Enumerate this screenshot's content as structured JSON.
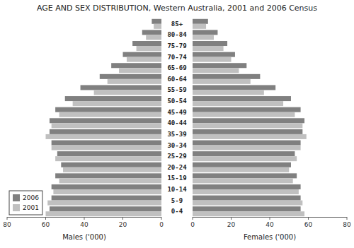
{
  "chart_data": [
    {
      "type": "bar",
      "orientation": "horizontal",
      "title": "AGE AND SEX DISTRIBUTION, Western Australia, 2001 and 2006 Census",
      "categories": [
        "0-4",
        "5-9",
        "10-14",
        "15-19",
        "20-24",
        "25-29",
        "30-34",
        "35-39",
        "40-44",
        "45-49",
        "50-54",
        "55-59",
        "60-64",
        "65-69",
        "70-74",
        "75-79",
        "80-84",
        "85+"
      ],
      "series": [
        {
          "name": "2006",
          "color": "#808080",
          "values": [
            58,
            57,
            57,
            55,
            52,
            54,
            57,
            58,
            58,
            55,
            50,
            42,
            32,
            26,
            20,
            15,
            10,
            5
          ]
        },
        {
          "name": "2001",
          "color": "#c0c0c0",
          "values": [
            60,
            59,
            56,
            53,
            51,
            55,
            57,
            60,
            57,
            53,
            46,
            35,
            28,
            22,
            18,
            13,
            8,
            4
          ]
        }
      ],
      "x_label": "Males ('000)",
      "xlim": [
        80,
        0
      ],
      "xticks": [
        0,
        20,
        40,
        60,
        80
      ],
      "legend": "lower left"
    },
    {
      "type": "bar",
      "orientation": "horizontal",
      "series": [
        {
          "color": "#808080",
          "values": [
            56,
            56,
            56,
            54,
            51,
            53,
            56,
            57,
            58,
            56,
            51,
            43,
            35,
            28,
            22,
            18,
            13,
            8
          ]
        },
        {
          "color": "#c0c0c0",
          "values": [
            58,
            57,
            55,
            52,
            50,
            54,
            56,
            59,
            57,
            53,
            47,
            37,
            30,
            24,
            20,
            16,
            11,
            7
          ]
        }
      ],
      "x_label": "Females ('000)",
      "xlim": [
        0,
        80
      ],
      "xticks": [
        0,
        20,
        40,
        60,
        80
      ]
    }
  ]
}
